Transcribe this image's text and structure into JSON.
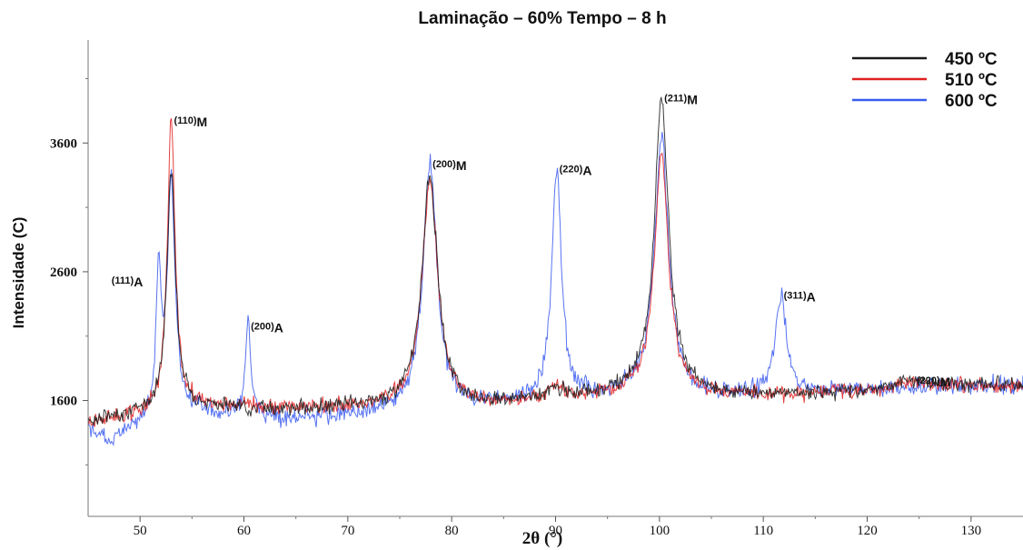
{
  "chart_data": {
    "type": "line",
    "title": "Laminação  – 60%    Tempo – 8 h",
    "xlabel": "2θ (°)",
    "ylabel": "Intensidade (C)",
    "xlim": [
      45,
      135
    ],
    "ylim": [
      700,
      4400
    ],
    "x_ticks": [
      50,
      60,
      70,
      80,
      90,
      100,
      110,
      120,
      130
    ],
    "y_ticks": [
      1600,
      2600,
      3600
    ],
    "grid": false,
    "legend_position": "top-right",
    "series": [
      {
        "name": "450 ºC",
        "color": "#1a1a1a",
        "baseline": [
          [
            45,
            1440
          ],
          [
            50,
            1500
          ],
          [
            55,
            1550
          ],
          [
            60,
            1540
          ],
          [
            65,
            1530
          ],
          [
            70,
            1540
          ],
          [
            75,
            1570
          ],
          [
            80,
            1560
          ],
          [
            85,
            1580
          ],
          [
            90,
            1620
          ],
          [
            95,
            1650
          ],
          [
            100,
            1720
          ],
          [
            105,
            1640
          ],
          [
            110,
            1650
          ],
          [
            115,
            1660
          ],
          [
            120,
            1680
          ],
          [
            125,
            1720
          ],
          [
            130,
            1720
          ],
          [
            135,
            1720
          ]
        ],
        "peaks": [
          [
            53.0,
            3400,
            0.5
          ],
          [
            77.9,
            3360,
            0.9
          ],
          [
            90.0,
            1680,
            0.8
          ],
          [
            100.2,
            3950,
            0.8
          ],
          [
            124.5,
            1760,
            1.5
          ]
        ],
        "noise": 45
      },
      {
        "name": "510 ºC",
        "color": "#e02020",
        "baseline": [
          [
            45,
            1430
          ],
          [
            50,
            1490
          ],
          [
            55,
            1560
          ],
          [
            60,
            1550
          ],
          [
            65,
            1540
          ],
          [
            70,
            1545
          ],
          [
            75,
            1570
          ],
          [
            80,
            1560
          ],
          [
            85,
            1560
          ],
          [
            90,
            1610
          ],
          [
            95,
            1640
          ],
          [
            100,
            1700
          ],
          [
            105,
            1640
          ],
          [
            110,
            1650
          ],
          [
            115,
            1650
          ],
          [
            120,
            1670
          ],
          [
            125,
            1720
          ],
          [
            130,
            1710
          ],
          [
            135,
            1710
          ]
        ],
        "peaks": [
          [
            53.0,
            3780,
            0.45
          ],
          [
            77.9,
            3300,
            0.9
          ],
          [
            90.0,
            1700,
            0.8
          ],
          [
            100.2,
            3500,
            0.8
          ],
          [
            124.5,
            1750,
            1.5
          ]
        ],
        "noise": 45
      },
      {
        "name": "600 ºC",
        "color": "#3a5bf0",
        "baseline": [
          [
            45,
            1380
          ],
          [
            47,
            1270
          ],
          [
            50,
            1400
          ],
          [
            52.5,
            1420
          ],
          [
            55,
            1500
          ],
          [
            60,
            1470
          ],
          [
            65,
            1460
          ],
          [
            70,
            1480
          ],
          [
            75,
            1510
          ],
          [
            80,
            1550
          ],
          [
            85,
            1570
          ],
          [
            90,
            1600
          ],
          [
            95,
            1630
          ],
          [
            100,
            1680
          ],
          [
            105,
            1620
          ],
          [
            110,
            1650
          ],
          [
            115,
            1660
          ],
          [
            120,
            1680
          ],
          [
            125,
            1700
          ],
          [
            130,
            1710
          ],
          [
            135,
            1710
          ]
        ],
        "peaks": [
          [
            51.8,
            2520,
            0.3
          ],
          [
            53.0,
            3300,
            0.45
          ],
          [
            60.4,
            2180,
            0.3
          ],
          [
            77.9,
            3440,
            0.8
          ],
          [
            90.1,
            3400,
            0.55
          ],
          [
            100.2,
            3650,
            0.8
          ],
          [
            111.7,
            2420,
            0.6
          ]
        ],
        "noise": 55
      }
    ],
    "annotations": [
      {
        "hkl": "(111)",
        "phase": "A",
        "x": 51.8,
        "y": 2520
      },
      {
        "hkl": "(110)",
        "phase": "M",
        "x": 53.0,
        "y": 3780
      },
      {
        "hkl": "(200)",
        "phase": "A",
        "x": 60.4,
        "y": 2180
      },
      {
        "hkl": "(200)",
        "phase": "M",
        "x": 77.9,
        "y": 3440
      },
      {
        "hkl": "(220)",
        "phase": "A",
        "x": 90.1,
        "y": 3400
      },
      {
        "hkl": "(211)",
        "phase": "M",
        "x": 100.2,
        "y": 3950
      },
      {
        "hkl": "(311)",
        "phase": "A",
        "x": 111.7,
        "y": 2420
      },
      {
        "hkl": "(220)",
        "phase": "M",
        "x": 124.5,
        "y": 1760
      }
    ]
  }
}
